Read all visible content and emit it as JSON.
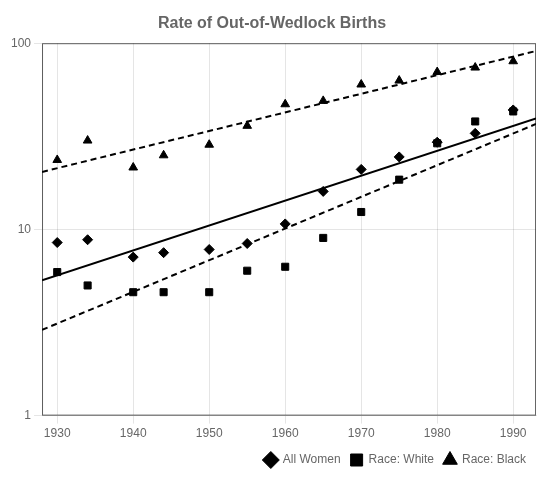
{
  "chart_data": {
    "type": "scatter",
    "title": "Rate of Out-of-Wedlock Births",
    "log": "y",
    "grid": true,
    "legend": "lower right",
    "xlim": [
      1928,
      1993
    ],
    "ylim": [
      1,
      100
    ],
    "xticks": [
      1930,
      1940,
      1950,
      1960,
      1970,
      1980,
      1990
    ],
    "yticks": [
      1,
      10,
      100
    ],
    "series": [
      {
        "type": "line",
        "color": "#000000",
        "line_style": "solid",
        "marker": "none",
        "x": [
          1928,
          1993
        ],
        "values": [
          5.337,
          39.44
        ]
      },
      {
        "type": "line",
        "color": "#000000",
        "line_style": "dashed",
        "marker": "none",
        "x": [
          1928,
          1993
        ],
        "values": [
          2.886,
          36.81
        ]
      },
      {
        "type": "line",
        "color": "#000000",
        "line_style": "dashed",
        "marker": "none",
        "x": [
          1928,
          1993
        ],
        "values": [
          20.36,
          90.78
        ]
      },
      {
        "name": "All Women",
        "type": "scatter",
        "color": "#000000",
        "marker": "diamond",
        "x": [
          1930,
          1934,
          1940,
          1944,
          1950,
          1955,
          1960,
          1965,
          1970,
          1975,
          1980,
          1985,
          1990
        ],
        "values": [
          8.5,
          8.8,
          7.1,
          7.5,
          7.8,
          8.4,
          10.7,
          16.0,
          21.0,
          24.5,
          29.4,
          32.8,
          43.8
        ]
      },
      {
        "name": "Race: White",
        "type": "scatter",
        "color": "#000000",
        "marker": "square",
        "x": [
          1930,
          1934,
          1940,
          1944,
          1950,
          1955,
          1960,
          1965,
          1970,
          1975,
          1980,
          1985,
          1990
        ],
        "values": [
          5.9,
          5.0,
          4.6,
          4.6,
          4.6,
          6.0,
          6.3,
          9.0,
          12.4,
          18.5,
          29.0,
          38.0,
          43.0
        ]
      },
      {
        "name": "Race: Black",
        "type": "scatter",
        "color": "#000000",
        "marker": "triangle",
        "x": [
          1930,
          1934,
          1940,
          1944,
          1950,
          1955,
          1960,
          1965,
          1970,
          1975,
          1980,
          1985,
          1990
        ],
        "values": [
          23.6,
          30.0,
          21.5,
          25.0,
          28.5,
          36.0,
          47.0,
          49.0,
          60.0,
          63.0,
          70.0,
          74.0,
          80.0
        ]
      }
    ]
  }
}
